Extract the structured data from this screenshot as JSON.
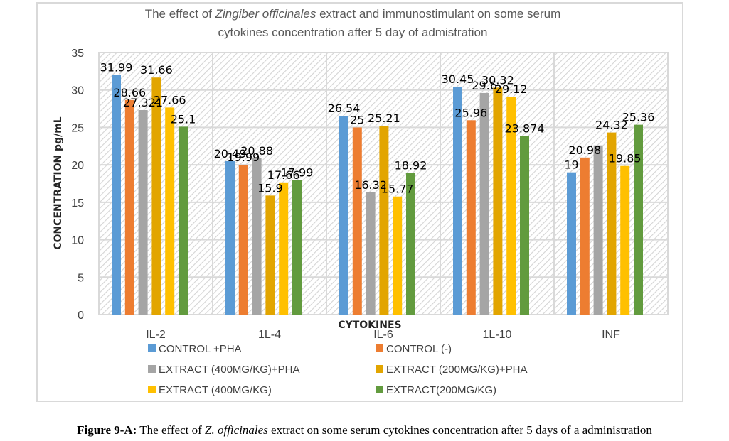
{
  "caption": {
    "label": "Figure 9-A:",
    "text_before": " The effect of ",
    "italic": "Z. officinales",
    "text_after": " extract on some serum cytokines concentration after 5 days of a administration"
  },
  "chart_data": {
    "type": "bar",
    "title_parts": [
      {
        "text": "The effect of ",
        "italic": false
      },
      {
        "text": "Zingiber officinales",
        "italic": true
      },
      {
        "text": " extract and immunostimulant on some serum",
        "italic": false
      }
    ],
    "title_line2": "cytokines concentration after 5 day of admistration",
    "xlabel": "CYTOKINES",
    "ylabel": "CONCENTRATION  pg/mL",
    "ylim": [
      0,
      35
    ],
    "yticks": [
      0,
      5,
      10,
      15,
      20,
      25,
      30,
      35
    ],
    "grid": true,
    "legend_position": "bottom",
    "categories": [
      "IL-2",
      "1L-4",
      "IL-6",
      "1L-10",
      "INF"
    ],
    "series": [
      {
        "name": "CONTROL +PHA",
        "color": "#5b9bd5",
        "values": [
          31.99,
          20.49,
          26.54,
          30.45,
          19
        ],
        "labels": [
          "31.99",
          "20.49",
          "26.54",
          "30.45",
          "19"
        ]
      },
      {
        "name": "CONTROL (-)",
        "color": "#ed7d31",
        "values": [
          28.66,
          19.99,
          25,
          25.96,
          20.98
        ],
        "labels": [
          "28.66",
          "19.99",
          "25",
          "25.96",
          "20.98"
        ]
      },
      {
        "name": "EXTRACT (400MG/KG)+PHA",
        "color": "#a5a5a5",
        "values": [
          27.321,
          20.88,
          16.32,
          29.6,
          22.6
        ],
        "labels": [
          "27.321",
          "20.88",
          "16.32",
          "29.6",
          ""
        ]
      },
      {
        "name": "EXTRACT (200MG/KG)+PHA",
        "color": "#e2a500",
        "values": [
          31.66,
          15.9,
          25.21,
          30.32,
          24.32
        ],
        "labels": [
          "31.66",
          "15.9",
          "25.21",
          "30.32",
          "24.32"
        ]
      },
      {
        "name": "EXTRACT (400MG/KG)",
        "color": "#ffc000",
        "values": [
          27.66,
          17.66,
          15.77,
          29.12,
          19.85
        ],
        "labels": [
          "27.66",
          "17.66",
          "15.77",
          "29.12",
          "19.85"
        ]
      },
      {
        "name": "EXTRACT(200MG/KG)",
        "color": "#629b3e",
        "values": [
          25.1,
          17.99,
          18.92,
          23.874,
          25.36
        ],
        "labels": [
          "25.1",
          "17.99",
          "18.92",
          "23.874",
          "25.36"
        ]
      }
    ]
  }
}
